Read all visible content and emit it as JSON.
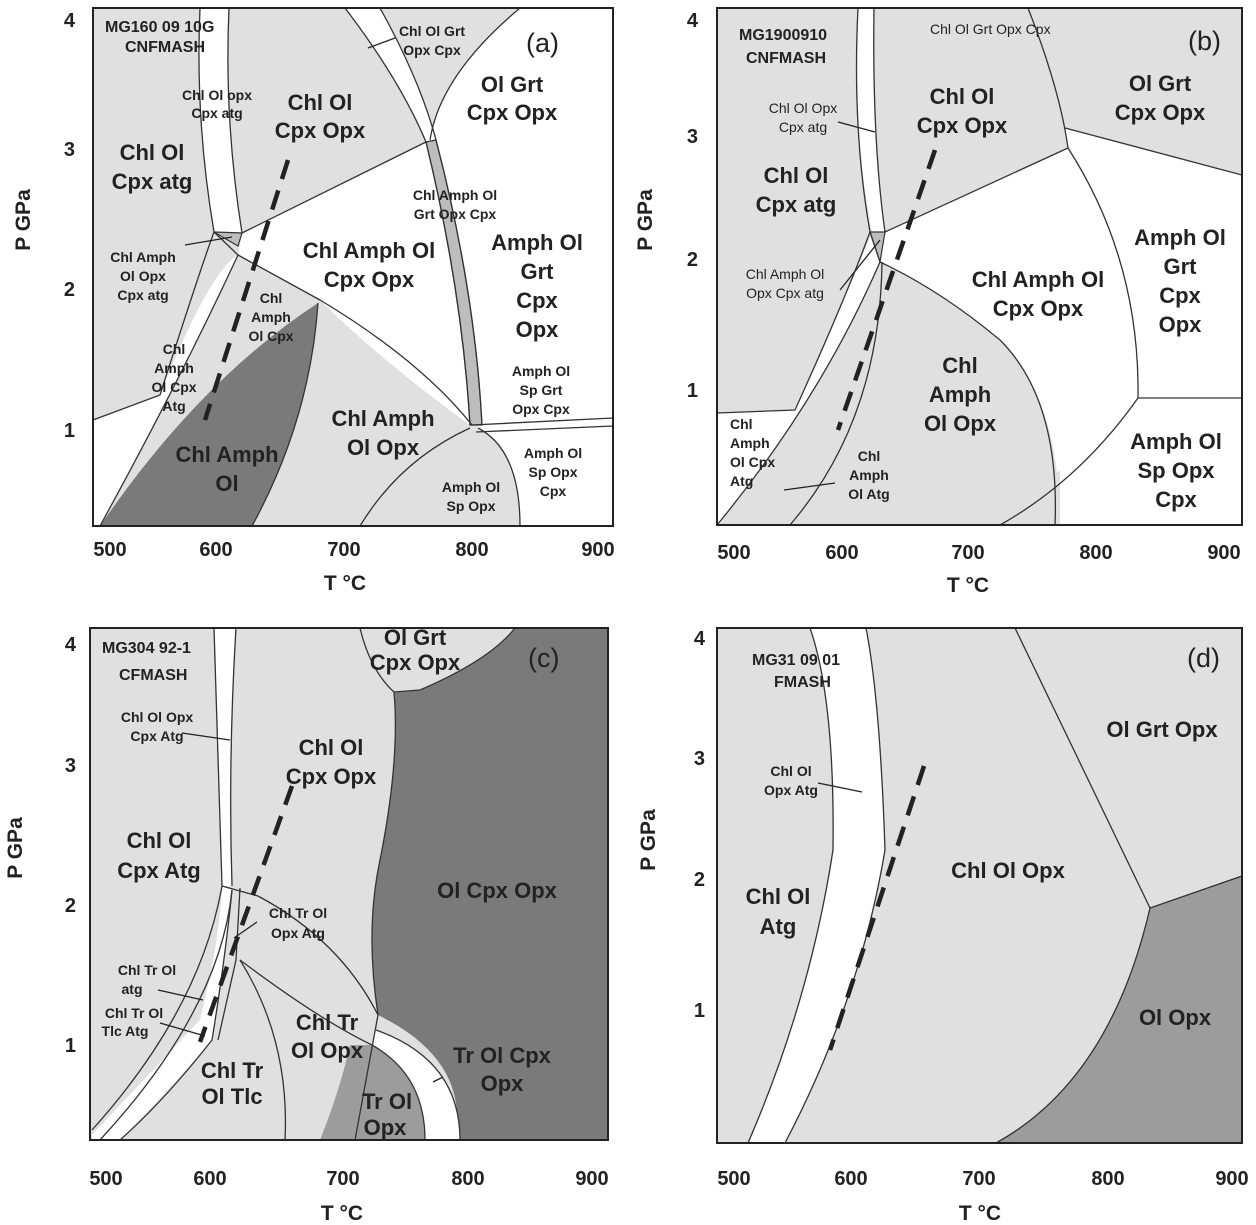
{
  "panels": [
    {
      "letter": "(a)",
      "sample": "MG160 09 10G",
      "system": "CNFMASH",
      "xlabel": "T °C",
      "ylabel": "P GPa",
      "xticks": [
        "500",
        "600",
        "700",
        "800",
        "900"
      ],
      "yticks": [
        "1",
        "2",
        "3",
        "4"
      ],
      "fields": {
        "chl_ol_grt_opx_cpx": [
          "Chl Ol Grt",
          "Opx Cpx"
        ],
        "ol_grt_cpx_opx": [
          "Ol Grt",
          "Cpx Opx"
        ],
        "chl_ol_opx_cpx_atg": [
          "Chl Ol opx",
          "Cpx atg"
        ],
        "chl_ol_cpx_opx": [
          "Chl Ol",
          "Cpx Opx"
        ],
        "chl_ol_cpx_atg": [
          "Chl Ol",
          "Cpx atg"
        ],
        "chl_amph_ol_grt_opx_cpx": [
          "Chl Amph Ol",
          "Grt Opx Cpx"
        ],
        "chl_amph_ol_opx_cpx_atg": [
          "Chl Amph",
          "Ol Opx",
          "Cpx atg"
        ],
        "chl_amph_ol_cpx_opx": [
          "Chl Amph Ol",
          "Cpx Opx"
        ],
        "amph_ol_grt_cpx_opx": [
          "Amph Ol",
          "Grt",
          "Cpx",
          "Opx"
        ],
        "chl_amph_ol_cpx": [
          "Chl",
          "Amph",
          "Ol Cpx"
        ],
        "chl_amph_ol_cpx_atg": [
          "Chl",
          "Amph",
          "Ol Cpx",
          "Atg"
        ],
        "amph_ol_sp_grt_opx_cpx": [
          "Amph Ol",
          "Sp Grt",
          "Opx Cpx"
        ],
        "chl_amph_ol_opx": [
          "Chl Amph",
          "Ol  Opx"
        ],
        "chl_amph_ol": [
          "Chl Amph",
          "Ol"
        ],
        "amph_ol_sp_opx_cpx": [
          "Amph Ol",
          "Sp Opx",
          "Cpx"
        ],
        "amph_ol_sp_opx": [
          "Amph Ol",
          "Sp Opx"
        ]
      }
    },
    {
      "letter": "(b)",
      "sample": "MG1900910",
      "system": "CNFMASH",
      "xlabel": "T °C",
      "ylabel": "P GPa",
      "xticks": [
        "500",
        "600",
        "700",
        "800",
        "900"
      ],
      "yticks": [
        "1",
        "2",
        "3",
        "4"
      ],
      "fields": {
        "chl_ol_grt_opx_cpx": "Chl  Ol Grt Opx Cpx",
        "ol_grt_cpx_opx": [
          "Ol Grt",
          "Cpx Opx"
        ],
        "chl_ol_opx_cpx_atg": [
          "Chl  Ol Opx",
          "Cpx atg"
        ],
        "chl_ol_cpx_opx": [
          "Chl Ol",
          "Cpx Opx"
        ],
        "chl_ol_cpx_atg": [
          "Chl Ol",
          "Cpx atg"
        ],
        "amph_ol_grt_cpx_opx": [
          "Amph Ol",
          "Grt",
          "Cpx",
          "Opx"
        ],
        "chl_amph_ol_opx_cpx_atg": [
          "Chl Amph Ol",
          "Opx Cpx atg"
        ],
        "chl_amph_ol_cpx_opx": [
          "Chl Amph Ol",
          "Cpx Opx"
        ],
        "chl_amph_ol_opx": [
          "Chl",
          "Amph",
          "Ol  Opx"
        ],
        "chl_amph_ol_cpx_atg": [
          "Chl",
          "Amph",
          "Ol  Cpx",
          "Atg"
        ],
        "chl_amph_ol_atg": [
          "Chl",
          "Amph",
          "Ol  Atg"
        ],
        "amph_ol_sp_opx_cpx": [
          "Amph Ol",
          "Sp Opx",
          "Cpx"
        ]
      }
    },
    {
      "letter": "(c)",
      "sample": "MG304 92-1",
      "system": "CFMASH",
      "xlabel": "T °C",
      "ylabel": "P GPa",
      "xticks": [
        "500",
        "600",
        "700",
        "800",
        "900"
      ],
      "yticks": [
        "1",
        "2",
        "3",
        "4"
      ],
      "fields": {
        "ol_grt_cpx_opx": [
          "Ol Grt",
          "Cpx Opx"
        ],
        "chl_ol_opx_cpx_atg": [
          "Chl Ol Opx",
          "Cpx Atg"
        ],
        "chl_ol_cpx_opx": [
          "Chl Ol",
          "Cpx Opx"
        ],
        "chl_ol_cpx_atg": [
          "Chl Ol",
          "Cpx Atg"
        ],
        "ol_cpx_opx": "Ol Cpx Opx",
        "chl_tr_ol_opx_atg": [
          "Chl Tr Ol",
          "Opx Atg"
        ],
        "chl_tr_ol_atg": [
          "Chl Tr Ol",
          "atg"
        ],
        "chl_tr_ol_tlc_atg": [
          "Chl  Tr Ol",
          "Tlc Atg"
        ],
        "chl_tr_ol_opx": [
          "Chl Tr",
          "Ol Opx"
        ],
        "tr_ol_cpx_opx": [
          "Tr Ol Cpx",
          "Opx"
        ],
        "chl_tr_ol_tlc": [
          "Chl Tr",
          "Ol Tlc"
        ],
        "tr_ol_opx": [
          "Tr Ol",
          "Opx"
        ]
      }
    },
    {
      "letter": "(d)",
      "sample": "MG31 09 01",
      "system": "FMASH",
      "xlabel": "T °C",
      "ylabel": "P GPa",
      "xticks": [
        "500",
        "600",
        "700",
        "800",
        "900"
      ],
      "yticks": [
        "1",
        "2",
        "3",
        "4"
      ],
      "fields": {
        "ol_grt_opx": "Ol Grt Opx",
        "chl_ol_opx_atg": [
          "Chl Ol",
          "Opx  Atg"
        ],
        "chl_ol_opx": "Chl Ol  Opx",
        "chl_ol_atg": [
          "Chl Ol",
          "Atg"
        ],
        "ol_opx": "Ol Opx"
      }
    }
  ]
}
